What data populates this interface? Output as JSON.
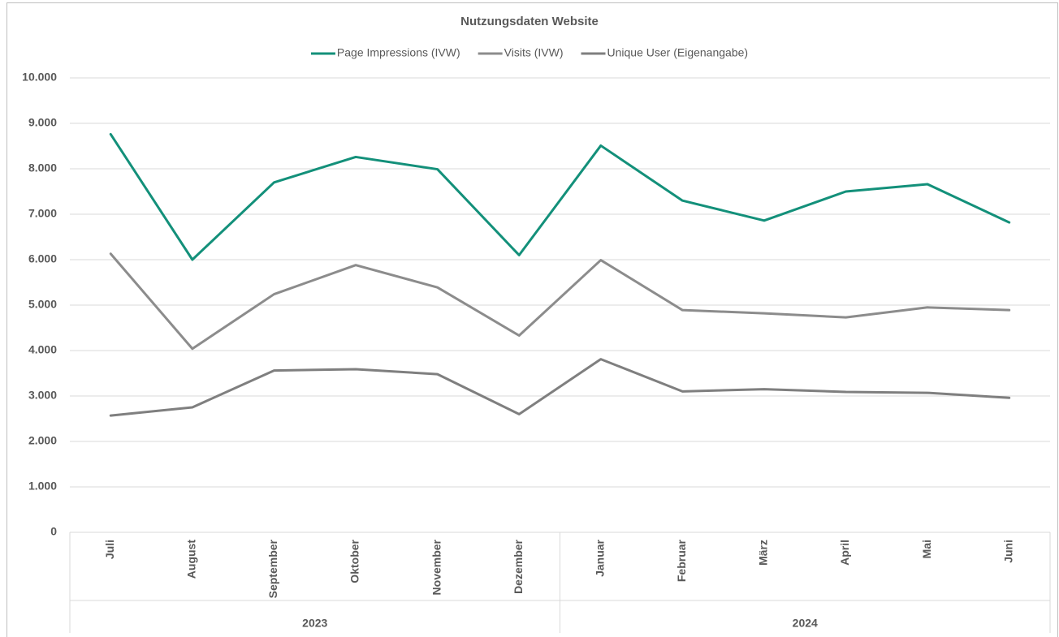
{
  "chart_data": {
    "type": "line",
    "title": "Nutzungsdaten Website",
    "category_groups": [
      {
        "name": "2023",
        "categories": [
          "Juli",
          "August",
          "September",
          "Oktober",
          "November",
          "Dezember"
        ]
      },
      {
        "name": "2024",
        "categories": [
          "Januar",
          "Februar",
          "März",
          "April",
          "Mai",
          "Juni"
        ]
      }
    ],
    "series": [
      {
        "name": "Page Impressions (IVW)",
        "color": "#13907a",
        "values": [
          8760,
          6000,
          7700,
          8260,
          7990,
          6100,
          8510,
          7300,
          6860,
          7500,
          7660,
          6820
        ]
      },
      {
        "name": "Visits (IVW)",
        "color": "#8c8c8c",
        "values": [
          6130,
          4040,
          5240,
          5880,
          5390,
          4330,
          5990,
          4890,
          4820,
          4730,
          4950,
          4890
        ]
      },
      {
        "name": "Unique User (Eigenangabe)",
        "color": "#7f7f7f",
        "values": [
          2570,
          2750,
          3560,
          3590,
          3480,
          2600,
          3810,
          3100,
          3150,
          3090,
          3070,
          2960
        ]
      }
    ],
    "ylim": [
      0,
      10000
    ],
    "yticks": [
      0,
      {
        "value": 1000,
        "label": "1.000"
      },
      {
        "value": 2000,
        "label": "2.000"
      },
      {
        "value": 3000,
        "label": "3.000"
      },
      {
        "value": 4000,
        "label": "4.000"
      },
      {
        "value": 5000,
        "label": "5.000"
      },
      {
        "value": 6000,
        "label": "6.000"
      },
      {
        "value": 7000,
        "label": "7.000"
      },
      {
        "value": 8000,
        "label": "8.000"
      },
      {
        "value": 9000,
        "label": "9.000"
      },
      {
        "value": 10000,
        "label": "10.000"
      }
    ],
    "grid": true,
    "legend": "top"
  }
}
